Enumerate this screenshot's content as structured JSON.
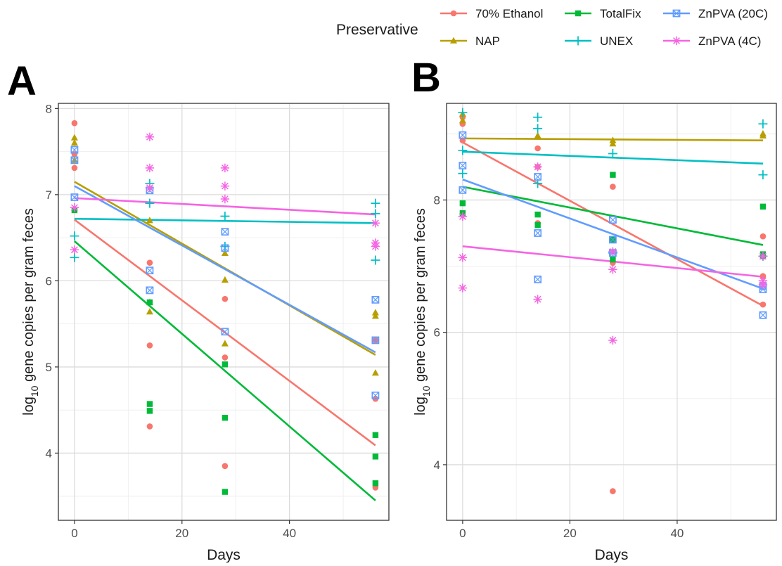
{
  "colors": {
    "70% Ethanol": "#F8766D",
    "NAP": "#B79F00",
    "TotalFix": "#00BA38",
    "UNEX": "#00BFC4",
    "ZnPVA (20C)": "#619CFF",
    "ZnPVA (4C)": "#F564E3"
  },
  "legend": {
    "title": "Preservative",
    "entries": [
      {
        "label": "70% Ethanol",
        "shape": "circle"
      },
      {
        "label": "TotalFix",
        "shape": "square"
      },
      {
        "label": "ZnPVA (20C)",
        "shape": "square-cross"
      },
      {
        "label": "NAP",
        "shape": "triangle"
      },
      {
        "label": "UNEX",
        "shape": "plus"
      },
      {
        "label": "ZnPVA (4C)",
        "shape": "asterisk"
      }
    ]
  },
  "chart_data": [
    {
      "panel": "A",
      "type": "scatter",
      "xlabel": "Days",
      "ylabel_main": "log",
      "ylabel_sub": "10",
      "ylabel_rest": " gene copies per gram feces",
      "xlim": [
        -3,
        58.5
      ],
      "ylim": [
        3.22,
        8.06
      ],
      "xticks": [
        0,
        20,
        40
      ],
      "yticks": [
        4,
        5,
        6,
        7,
        8
      ],
      "grid": true,
      "series": [
        {
          "name": "70% Ethanol",
          "shape": "circle",
          "points": [
            [
              0,
              7.83
            ],
            [
              0,
              7.47
            ],
            [
              0,
              7.31
            ],
            [
              14,
              6.21
            ],
            [
              14,
              5.25
            ],
            [
              14,
              4.31
            ],
            [
              28,
              5.79
            ],
            [
              28,
              5.11
            ],
            [
              28,
              3.85
            ],
            [
              56,
              5.31
            ],
            [
              56,
              4.63
            ],
            [
              56,
              3.6
            ]
          ],
          "trend": [
            [
              0,
              6.71
            ],
            [
              56,
              4.09
            ]
          ]
        },
        {
          "name": "NAP",
          "shape": "triangle",
          "points": [
            [
              0,
              7.66
            ],
            [
              0,
              7.6
            ],
            [
              0,
              7.4
            ],
            [
              14,
              6.7
            ],
            [
              14,
              5.75
            ],
            [
              14,
              5.64
            ],
            [
              28,
              6.32
            ],
            [
              28,
              6.01
            ],
            [
              28,
              5.27
            ],
            [
              56,
              5.63
            ],
            [
              56,
              5.59
            ],
            [
              56,
              4.93
            ]
          ],
          "trend": [
            [
              0,
              7.15
            ],
            [
              56,
              5.14
            ]
          ]
        },
        {
          "name": "TotalFix",
          "shape": "square",
          "points": [
            [
              0,
              6.82
            ],
            [
              14,
              5.75
            ],
            [
              14,
              4.57
            ],
            [
              14,
              4.49
            ],
            [
              28,
              5.03
            ],
            [
              28,
              4.41
            ],
            [
              28,
              3.55
            ],
            [
              56,
              4.21
            ],
            [
              56,
              3.96
            ],
            [
              56,
              3.65
            ]
          ],
          "trend": [
            [
              0,
              6.46
            ],
            [
              56,
              3.45
            ]
          ]
        },
        {
          "name": "UNEX",
          "shape": "plus",
          "points": [
            [
              0,
              6.52
            ],
            [
              0,
              6.27
            ],
            [
              14,
              7.13
            ],
            [
              14,
              6.9
            ],
            [
              28,
              6.75
            ],
            [
              28,
              6.4
            ],
            [
              56,
              6.9
            ],
            [
              56,
              6.78
            ],
            [
              56,
              6.24
            ]
          ],
          "trend": [
            [
              0,
              6.72
            ],
            [
              56,
              6.67
            ]
          ]
        },
        {
          "name": "ZnPVA (20C)",
          "shape": "square-cross",
          "points": [
            [
              0,
              7.52
            ],
            [
              0,
              7.4
            ],
            [
              0,
              6.97
            ],
            [
              14,
              7.05
            ],
            [
              14,
              6.12
            ],
            [
              14,
              5.89
            ],
            [
              28,
              6.57
            ],
            [
              28,
              6.38
            ],
            [
              28,
              5.41
            ],
            [
              56,
              5.78
            ],
            [
              56,
              5.31
            ],
            [
              56,
              4.67
            ]
          ],
          "trend": [
            [
              0,
              7.1
            ],
            [
              56,
              5.17
            ]
          ]
        },
        {
          "name": "ZnPVA (4C)",
          "shape": "asterisk",
          "points": [
            [
              0,
              6.36
            ],
            [
              0,
              6.85
            ],
            [
              14,
              7.67
            ],
            [
              14,
              7.31
            ],
            [
              14,
              7.08
            ],
            [
              28,
              7.31
            ],
            [
              28,
              7.1
            ],
            [
              28,
              6.95
            ],
            [
              56,
              6.67
            ],
            [
              56,
              6.44
            ],
            [
              56,
              6.4
            ]
          ],
          "trend": [
            [
              0,
              6.96
            ],
            [
              56,
              6.77
            ]
          ]
        }
      ]
    },
    {
      "panel": "B",
      "type": "scatter",
      "xlabel": "Days",
      "ylabel_main": "log",
      "ylabel_sub": "10",
      "ylabel_rest": " gene copies per gram feces",
      "xlim": [
        -3,
        58.5
      ],
      "ylim": [
        3.16,
        9.46
      ],
      "xticks": [
        0,
        20,
        40
      ],
      "yticks": [
        4,
        6,
        8
      ],
      "grid": true,
      "series": [
        {
          "name": "70% Ethanol",
          "shape": "circle",
          "points": [
            [
              0,
              9.25
            ],
            [
              0,
              9.15
            ],
            [
              0,
              8.9
            ],
            [
              14,
              8.78
            ],
            [
              14,
              8.5
            ],
            [
              14,
              7.65
            ],
            [
              28,
              8.2
            ],
            [
              28,
              7.05
            ],
            [
              28,
              3.6
            ],
            [
              56,
              7.45
            ],
            [
              56,
              6.85
            ],
            [
              56,
              6.42
            ]
          ],
          "trend": [
            [
              0,
              8.87
            ],
            [
              56,
              6.4
            ]
          ]
        },
        {
          "name": "NAP",
          "shape": "triangle",
          "points": [
            [
              0,
              9.3
            ],
            [
              0,
              9.2
            ],
            [
              14,
              8.97
            ],
            [
              28,
              8.9
            ],
            [
              28,
              8.85
            ],
            [
              56,
              9.0
            ],
            [
              56,
              8.97
            ]
          ],
          "trend": [
            [
              0,
              8.93
            ],
            [
              56,
              8.9
            ]
          ]
        },
        {
          "name": "TotalFix",
          "shape": "square",
          "points": [
            [
              0,
              7.95
            ],
            [
              0,
              7.8
            ],
            [
              14,
              7.78
            ],
            [
              14,
              7.62
            ],
            [
              28,
              8.38
            ],
            [
              28,
              7.4
            ],
            [
              28,
              7.1
            ],
            [
              56,
              7.9
            ],
            [
              56,
              7.18
            ],
            [
              56,
              7.15
            ]
          ],
          "trend": [
            [
              0,
              8.2
            ],
            [
              56,
              7.32
            ]
          ]
        },
        {
          "name": "UNEX",
          "shape": "plus",
          "points": [
            [
              0,
              9.32
            ],
            [
              0,
              8.75
            ],
            [
              0,
              8.4
            ],
            [
              14,
              9.25
            ],
            [
              14,
              9.08
            ],
            [
              14,
              8.25
            ],
            [
              28,
              8.7
            ],
            [
              28,
              7.2
            ],
            [
              56,
              9.15
            ],
            [
              56,
              8.38
            ],
            [
              56,
              7.15
            ]
          ],
          "trend": [
            [
              0,
              8.73
            ],
            [
              56,
              8.55
            ]
          ]
        },
        {
          "name": "ZnPVA (20C)",
          "shape": "square-cross",
          "points": [
            [
              0,
              8.98
            ],
            [
              0,
              8.52
            ],
            [
              0,
              8.15
            ],
            [
              14,
              8.35
            ],
            [
              14,
              7.5
            ],
            [
              14,
              6.8
            ],
            [
              28,
              7.7
            ],
            [
              28,
              7.4
            ],
            [
              28,
              7.2
            ],
            [
              56,
              6.7
            ],
            [
              56,
              6.65
            ],
            [
              56,
              6.26
            ]
          ],
          "trend": [
            [
              0,
              8.31
            ],
            [
              56,
              6.66
            ]
          ]
        },
        {
          "name": "ZnPVA (4C)",
          "shape": "asterisk",
          "points": [
            [
              0,
              7.75
            ],
            [
              0,
              7.13
            ],
            [
              0,
              6.67
            ],
            [
              14,
              8.5
            ],
            [
              14,
              6.5
            ],
            [
              28,
              7.22
            ],
            [
              28,
              6.95
            ],
            [
              28,
              5.88
            ],
            [
              56,
              7.15
            ],
            [
              56,
              6.78
            ],
            [
              56,
              6.72
            ]
          ],
          "trend": [
            [
              0,
              7.3
            ],
            [
              56,
              6.84
            ]
          ]
        }
      ]
    }
  ]
}
